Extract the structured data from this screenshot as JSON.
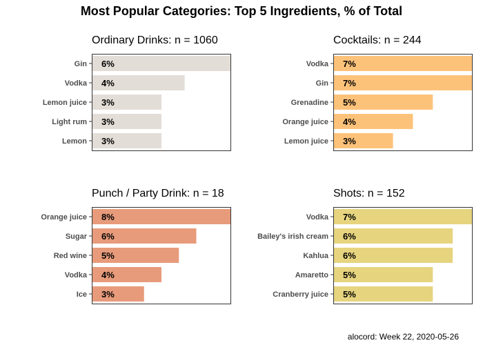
{
  "title": "Most Popular Categories: Top 5 Ingredients, % of Total",
  "caption": "alocord: Week 22, 2020-05-26",
  "chart_data": [
    {
      "type": "bar",
      "orientation": "horizontal",
      "title": "Ordinary Drinks: n = 1060",
      "categories": [
        "Gin",
        "Vodka",
        "Lemon juice",
        "Light rum",
        "Lemon"
      ],
      "values": [
        6,
        4,
        3,
        3,
        3
      ],
      "value_labels": [
        "6%",
        "4%",
        "3%",
        "3%",
        "3%"
      ],
      "color": "#e3ddd7"
    },
    {
      "type": "bar",
      "orientation": "horizontal",
      "title": "Cocktails: n = 244",
      "categories": [
        "Vodka",
        "Gin",
        "Grenadine",
        "Orange juice",
        "Lemon juice"
      ],
      "values": [
        7,
        7,
        5,
        4,
        3
      ],
      "value_labels": [
        "7%",
        "7%",
        "5%",
        "4%",
        "3%"
      ],
      "color": "#fdc27a"
    },
    {
      "type": "bar",
      "orientation": "horizontal",
      "title": "Punch / Party Drink: n = 18",
      "categories": [
        "Orange juice",
        "Sugar",
        "Red wine",
        "Vodka",
        "Ice"
      ],
      "values": [
        8,
        6,
        5,
        4,
        3
      ],
      "value_labels": [
        "8%",
        "6%",
        "5%",
        "4%",
        "3%"
      ],
      "color": "#e79b7b"
    },
    {
      "type": "bar",
      "orientation": "horizontal",
      "title": "Shots: n = 152",
      "categories": [
        "Vodka",
        "Bailey's irish cream",
        "Kahlua",
        "Amaretto",
        "Cranberry juice"
      ],
      "values": [
        7,
        6,
        6,
        5,
        5
      ],
      "value_labels": [
        "7%",
        "6%",
        "6%",
        "5%",
        "5%"
      ],
      "color": "#e6d47f"
    }
  ]
}
